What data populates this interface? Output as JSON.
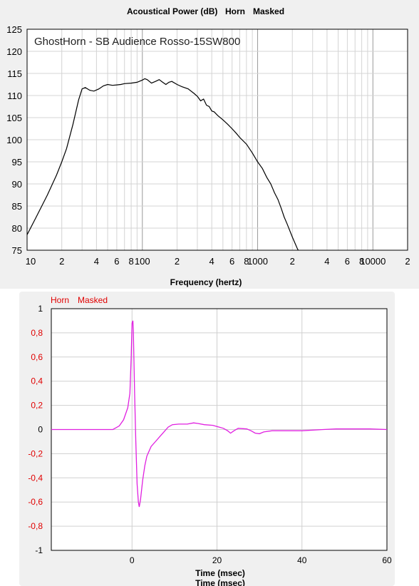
{
  "chart_data": [
    {
      "type": "line",
      "title": "Acoustical Power (dB)",
      "title_tags": [
        "Horn",
        "Masked"
      ],
      "annotation": "GhostHorn - SB Audience Rosso-15SW800",
      "xlabel": "Frequency (hertz)",
      "ylabel": "",
      "xscale": "log",
      "xlim": [
        10,
        20000
      ],
      "ylim": [
        75,
        125
      ],
      "y_ticks": [
        "125",
        "120",
        "115",
        "110",
        "105",
        "100",
        "95",
        "90",
        "85",
        "80",
        "75"
      ],
      "x_ticks": [
        {
          "v": 10,
          "label": "10"
        },
        {
          "v": 20,
          "label": "2"
        },
        {
          "v": 40,
          "label": "4"
        },
        {
          "v": 60,
          "label": "6"
        },
        {
          "v": 80,
          "label": "8"
        },
        {
          "v": 100,
          "label": "100"
        },
        {
          "v": 200,
          "label": "2"
        },
        {
          "v": 400,
          "label": "4"
        },
        {
          "v": 600,
          "label": "6"
        },
        {
          "v": 800,
          "label": "8"
        },
        {
          "v": 1000,
          "label": "1000"
        },
        {
          "v": 2000,
          "label": "2"
        },
        {
          "v": 4000,
          "label": "4"
        },
        {
          "v": 6000,
          "label": "6"
        },
        {
          "v": 8000,
          "label": "8"
        },
        {
          "v": 10000,
          "label": "10000"
        },
        {
          "v": 20000,
          "label": "2"
        }
      ],
      "grid": true,
      "series": [
        {
          "color": "#000000",
          "points": [
            [
              10,
              78.5
            ],
            [
              12,
              82.5
            ],
            [
              15,
              87.5
            ],
            [
              18,
              92
            ],
            [
              20,
              95
            ],
            [
              22,
              98
            ],
            [
              25,
              103.5
            ],
            [
              28,
              109
            ],
            [
              30,
              111.5
            ],
            [
              32,
              111.8
            ],
            [
              35,
              111.2
            ],
            [
              38,
              111
            ],
            [
              42,
              111.5
            ],
            [
              46,
              112.2
            ],
            [
              50,
              112.5
            ],
            [
              55,
              112.3
            ],
            [
              60,
              112.4
            ],
            [
              65,
              112.5
            ],
            [
              70,
              112.7
            ],
            [
              80,
              112.8
            ],
            [
              90,
              113
            ],
            [
              100,
              113.5
            ],
            [
              105,
              113.8
            ],
            [
              110,
              113.6
            ],
            [
              120,
              112.8
            ],
            [
              130,
              113.2
            ],
            [
              140,
              113.6
            ],
            [
              150,
              113
            ],
            [
              160,
              112.5
            ],
            [
              170,
              113
            ],
            [
              180,
              113.2
            ],
            [
              200,
              112.5
            ],
            [
              220,
              112
            ],
            [
              250,
              111.5
            ],
            [
              280,
              110.5
            ],
            [
              300,
              109.8
            ],
            [
              320,
              108.8
            ],
            [
              340,
              109.2
            ],
            [
              360,
              107.8
            ],
            [
              380,
              107.5
            ],
            [
              400,
              106.5
            ],
            [
              420,
              106.3
            ],
            [
              450,
              105.5
            ],
            [
              500,
              104.5
            ],
            [
              550,
              103.5
            ],
            [
              600,
              102.5
            ],
            [
              650,
              101.5
            ],
            [
              700,
              100.5
            ],
            [
              800,
              99
            ],
            [
              900,
              97
            ],
            [
              1000,
              95
            ],
            [
              1100,
              93.5
            ],
            [
              1200,
              91.5
            ],
            [
              1300,
              90
            ],
            [
              1400,
              88
            ],
            [
              1500,
              86.5
            ],
            [
              1600,
              84.5
            ],
            [
              1700,
              82.5
            ],
            [
              1800,
              81
            ],
            [
              2000,
              78
            ],
            [
              2200,
              75.5
            ],
            [
              2300,
              74.5
            ]
          ]
        }
      ]
    },
    {
      "type": "line",
      "title": "",
      "legend_tags": [
        "Horn",
        "Masked"
      ],
      "xlabel": "Time (msec)",
      "xlabel_echo": "Time (msec)",
      "ylabel": "",
      "xlim": [
        -19,
        60
      ],
      "ylim": [
        -1,
        1
      ],
      "x_ticks": [
        {
          "v": 0,
          "label": "0"
        },
        {
          "v": 20,
          "label": "20"
        },
        {
          "v": 40,
          "label": "40"
        },
        {
          "v": 60,
          "label": "60"
        }
      ],
      "y_ticks": [
        {
          "v": 1,
          "label": "1",
          "red": false
        },
        {
          "v": 0.8,
          "label": "0,8",
          "red": true
        },
        {
          "v": 0.6,
          "label": "0,6",
          "red": true
        },
        {
          "v": 0.4,
          "label": "0,4",
          "red": true
        },
        {
          "v": 0.2,
          "label": "0,2",
          "red": true
        },
        {
          "v": 0,
          "label": "0",
          "red": false
        },
        {
          "v": -0.2,
          "label": "-0,2",
          "red": true
        },
        {
          "v": -0.4,
          "label": "-0,4",
          "red": true
        },
        {
          "v": -0.6,
          "label": "-0,6",
          "red": true
        },
        {
          "v": -0.8,
          "label": "-0,8",
          "red": true
        },
        {
          "v": -1,
          "label": "-1",
          "red": false
        }
      ],
      "grid": true,
      "series": [
        {
          "color": "#e020e0",
          "points": [
            [
              -19,
              0
            ],
            [
              -6,
              0
            ],
            [
              -4.5,
              0
            ],
            [
              -4,
              0.01
            ],
            [
              -3,
              0.03
            ],
            [
              -2,
              0.08
            ],
            [
              -1,
              0.18
            ],
            [
              -0.5,
              0.3
            ],
            [
              -0.2,
              0.6
            ],
            [
              0,
              0.88
            ],
            [
              0.2,
              0.9
            ],
            [
              0.3,
              0.82
            ],
            [
              0.6,
              0.3
            ],
            [
              0.9,
              -0.1
            ],
            [
              1.2,
              -0.45
            ],
            [
              1.5,
              -0.6
            ],
            [
              1.7,
              -0.64
            ],
            [
              2,
              -0.58
            ],
            [
              2.5,
              -0.42
            ],
            [
              3,
              -0.3
            ],
            [
              3.5,
              -0.22
            ],
            [
              4.5,
              -0.14
            ],
            [
              5.5,
              -0.1
            ],
            [
              6.5,
              -0.06
            ],
            [
              7.5,
              -0.02
            ],
            [
              8.5,
              0.02
            ],
            [
              9.5,
              0.04
            ],
            [
              11,
              0.045
            ],
            [
              13,
              0.045
            ],
            [
              14.5,
              0.055
            ],
            [
              15.5,
              0.05
            ],
            [
              17,
              0.04
            ],
            [
              19,
              0.035
            ],
            [
              20.5,
              0.02
            ],
            [
              21.5,
              0.01
            ],
            [
              22.5,
              -0.01
            ],
            [
              23.2,
              -0.03
            ],
            [
              24,
              -0.01
            ],
            [
              25,
              0.01
            ],
            [
              27,
              0.005
            ],
            [
              28,
              -0.01
            ],
            [
              29,
              -0.03
            ],
            [
              30,
              -0.035
            ],
            [
              31,
              -0.02
            ],
            [
              33,
              -0.01
            ],
            [
              36,
              -0.01
            ],
            [
              40,
              -0.01
            ],
            [
              45,
              0
            ],
            [
              48,
              0.005
            ],
            [
              52,
              0.005
            ],
            [
              56,
              0.005
            ],
            [
              60,
              0
            ]
          ]
        }
      ]
    }
  ]
}
